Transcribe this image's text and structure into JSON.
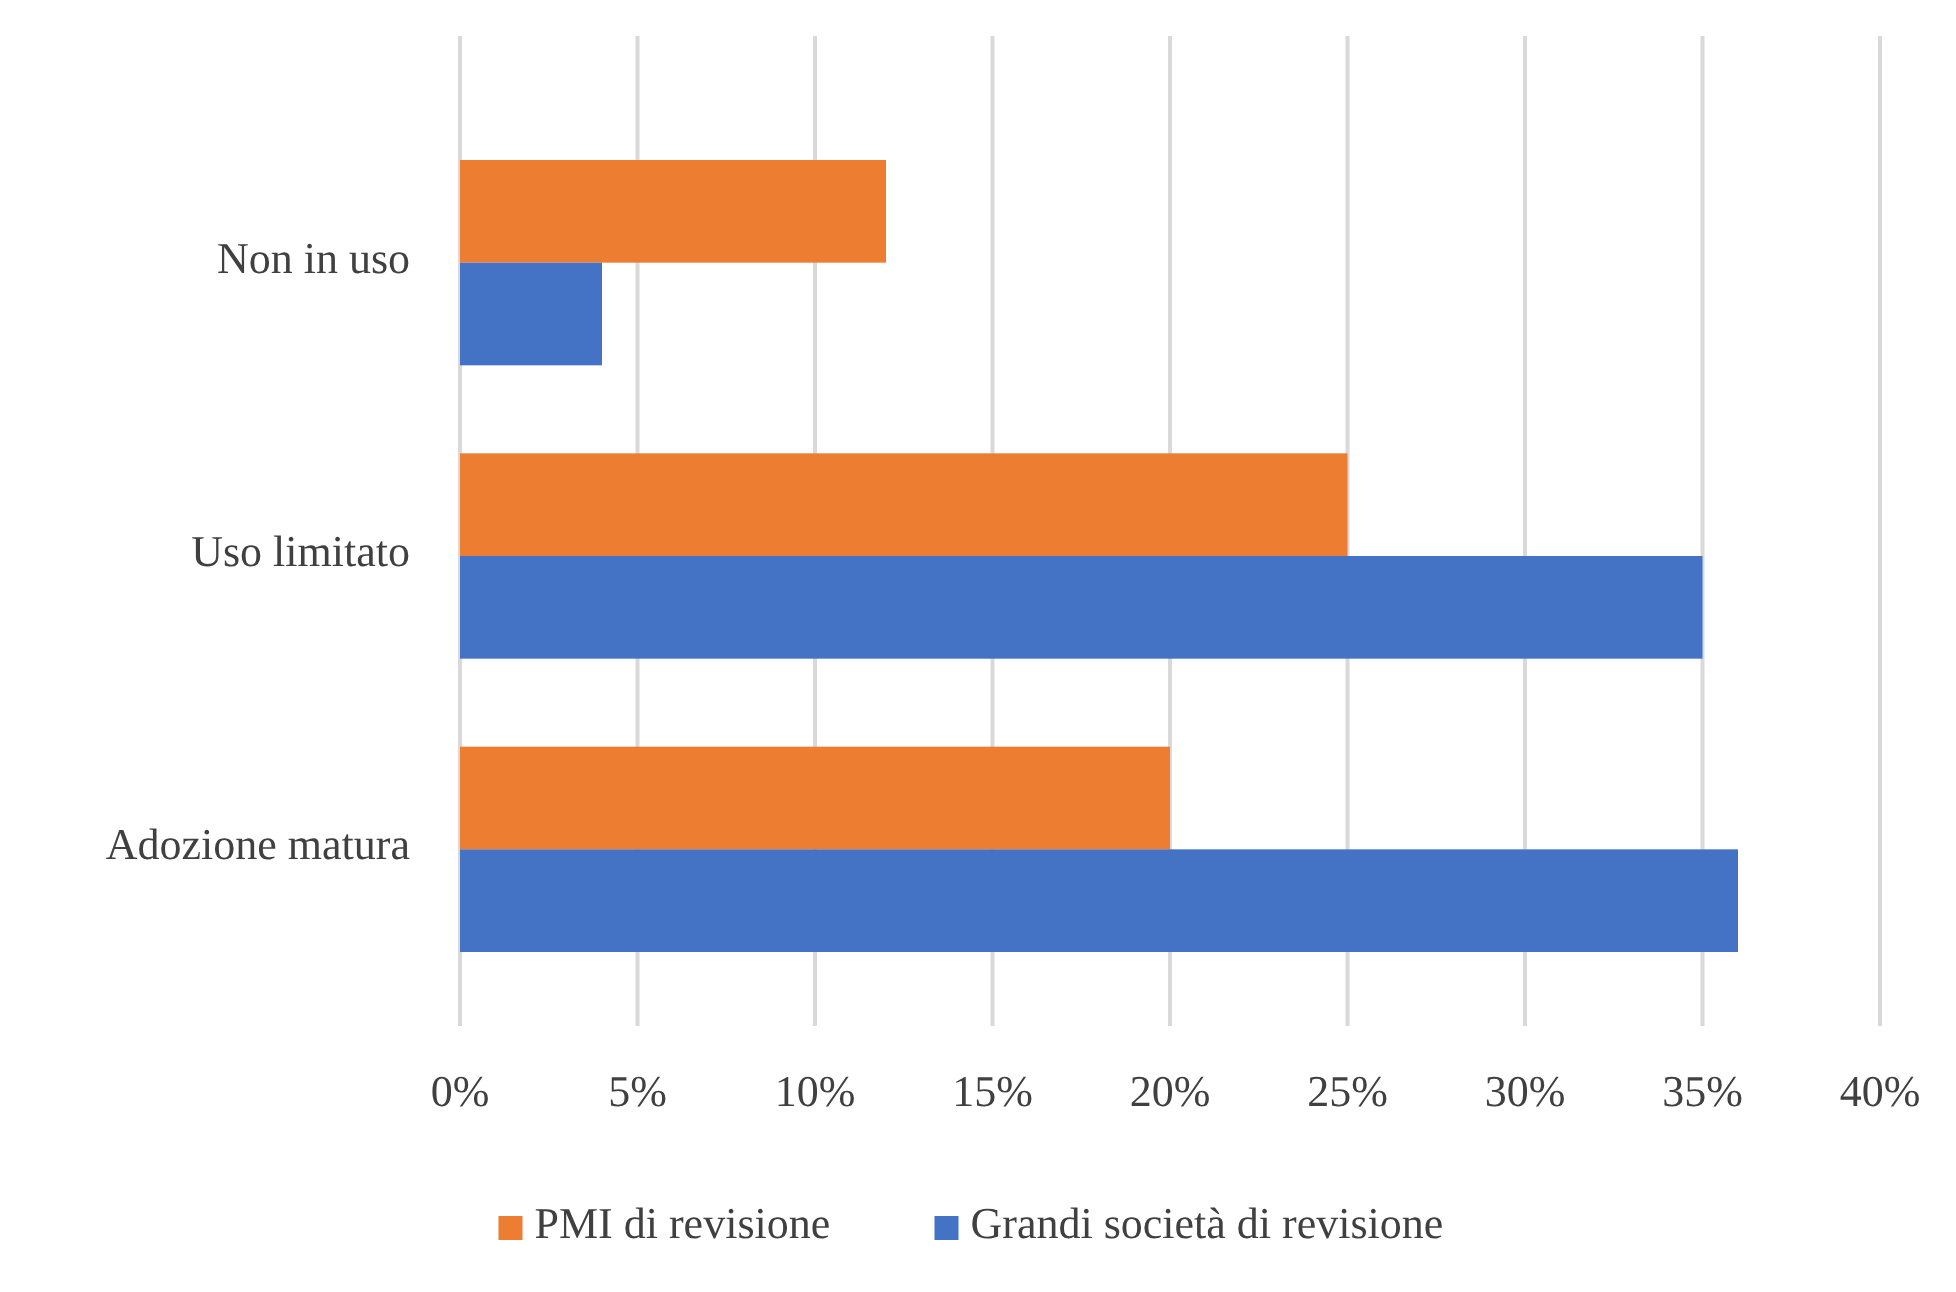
{
  "chart_data": {
    "type": "bar",
    "orientation": "horizontal",
    "categories": [
      "Non in uso",
      "Uso limitato",
      "Adozione matura"
    ],
    "series": [
      {
        "name": "PMI di revisione",
        "color": "#ed7d31",
        "values": [
          12,
          25,
          20
        ]
      },
      {
        "name": "Grandi società di revisione",
        "color": "#4472c4",
        "values": [
          4,
          35,
          36
        ]
      }
    ],
    "xlim": [
      0,
      40
    ],
    "xticks": [
      {
        "value": 0,
        "label": "0%"
      },
      {
        "value": 5,
        "label": "5%"
      },
      {
        "value": 10,
        "label": "10%"
      },
      {
        "value": 15,
        "label": "15%"
      },
      {
        "value": 20,
        "label": "20%"
      },
      {
        "value": 25,
        "label": "25%"
      },
      {
        "value": 30,
        "label": "30%"
      },
      {
        "value": 35,
        "label": "35%"
      },
      {
        "value": 40,
        "label": "40%"
      }
    ],
    "grid": "x",
    "legend": "bottom"
  }
}
